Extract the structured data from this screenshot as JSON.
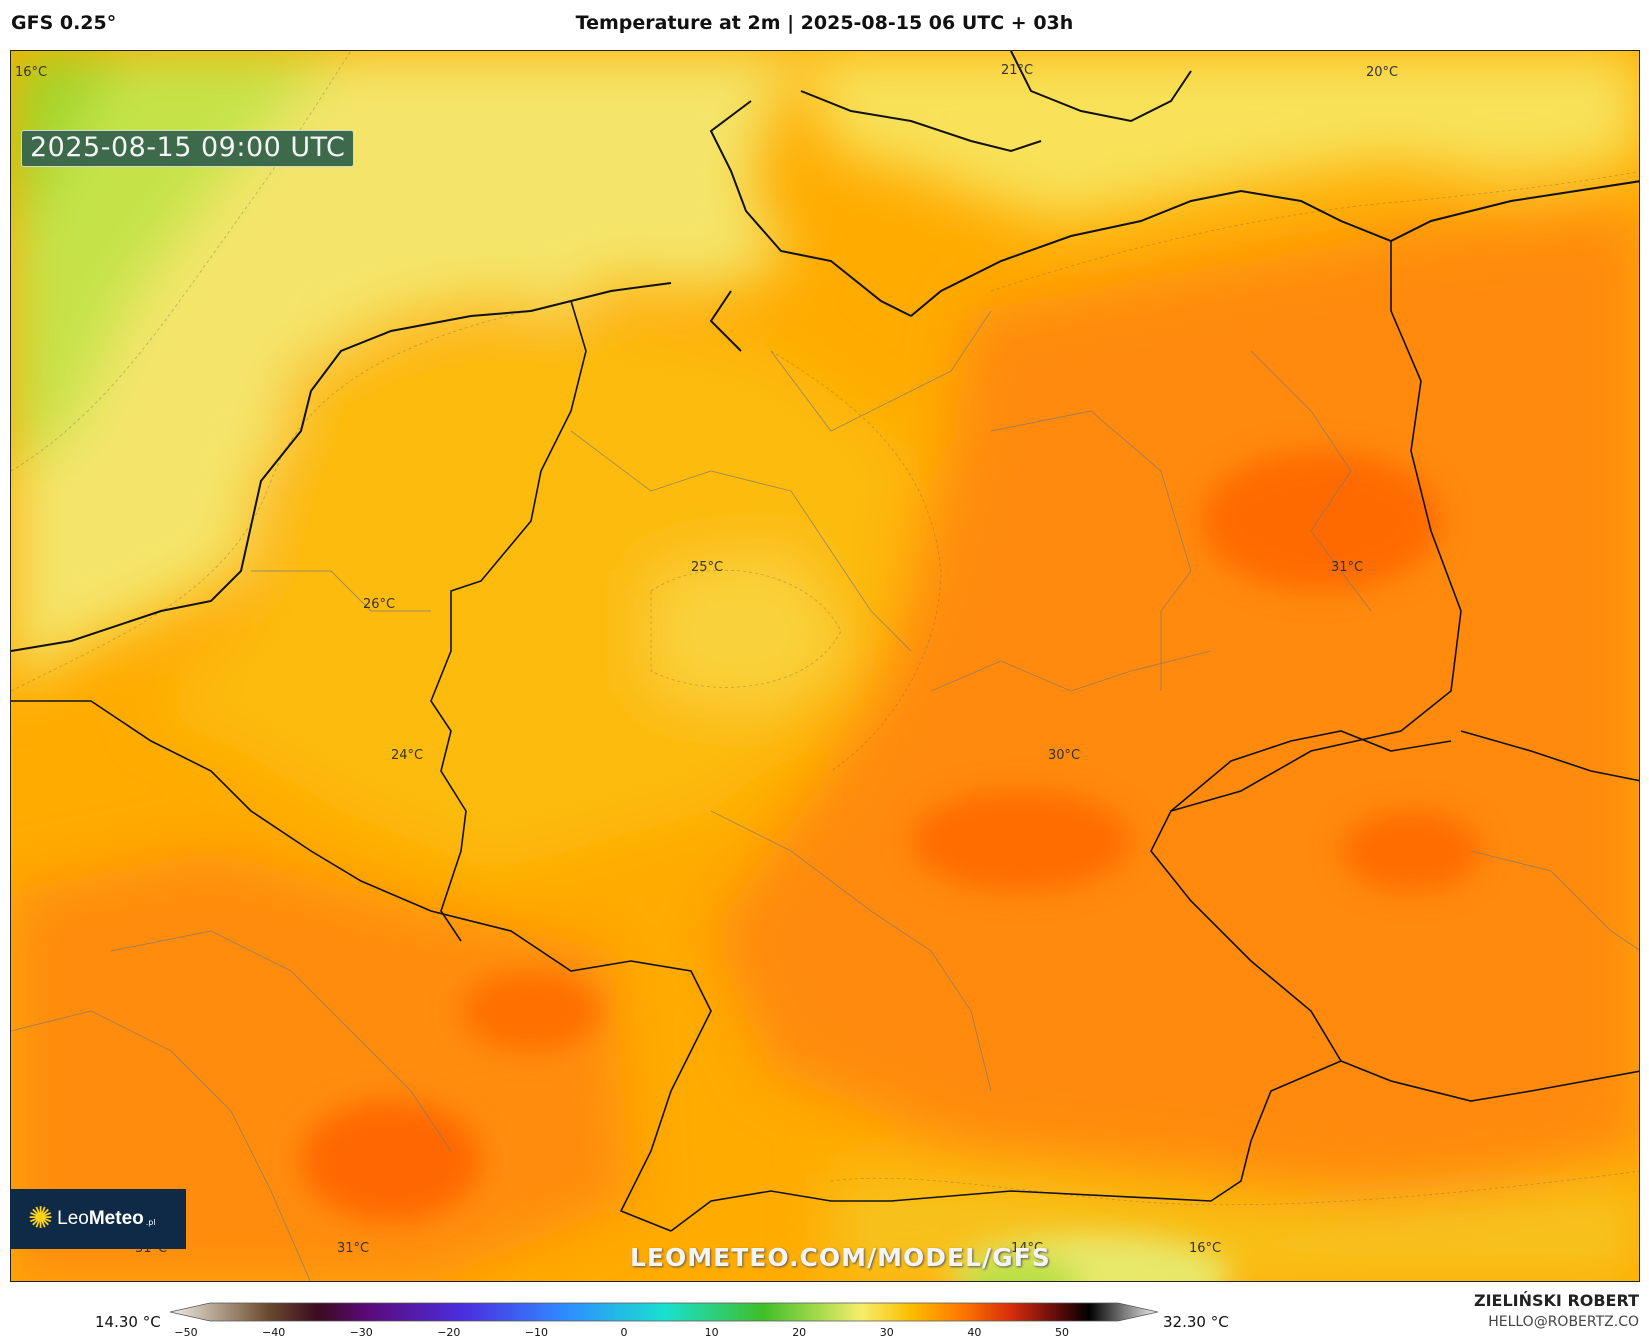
{
  "header": {
    "model": "GFS 0.25°",
    "title": "Temperature at 2m | 2025-08-15 06 UTC + 03h"
  },
  "map": {
    "timestamp": "2025-08-15 09:00 UTC",
    "labels": [
      {
        "id": "l16a",
        "text": "16°C"
      },
      {
        "id": "l21",
        "text": "21°C"
      },
      {
        "id": "l20",
        "text": "20°C"
      },
      {
        "id": "l25",
        "text": "25°C"
      },
      {
        "id": "l26",
        "text": "26°C"
      },
      {
        "id": "l31a",
        "text": "31°C"
      },
      {
        "id": "l24",
        "text": "24°C"
      },
      {
        "id": "l30",
        "text": "30°C"
      },
      {
        "id": "l31b",
        "text": "31°C"
      },
      {
        "id": "l31c",
        "text": "31°C"
      },
      {
        "id": "l14",
        "text": "14°C"
      },
      {
        "id": "l16b",
        "text": "16°C"
      }
    ],
    "watermark": "LEOMETEO.COM/MODEL/GFS",
    "logo": {
      "part1": "Leo",
      "part2": "Meteo",
      "part3": ".pl"
    }
  },
  "colorbar": {
    "min_label": "14.30 °C",
    "max_label": "32.30 °C",
    "ticks": [
      "−50",
      "−40",
      "−30",
      "−20",
      "−10",
      "0",
      "10",
      "20",
      "30",
      "40",
      "50"
    ],
    "stops": [
      {
        "value": -50,
        "color": "#f2ece4"
      },
      {
        "value": -40,
        "color": "#6a4a2e"
      },
      {
        "value": -35,
        "color": "#3c0a1e"
      },
      {
        "value": -30,
        "color": "#5a0a7a"
      },
      {
        "value": -20,
        "color": "#4a30e0"
      },
      {
        "value": -10,
        "color": "#2f8cff"
      },
      {
        "value": 0,
        "color": "#19e0d0"
      },
      {
        "value": 10,
        "color": "#3fbf28"
      },
      {
        "value": 20,
        "color": "#f6ee6a"
      },
      {
        "value": 25,
        "color": "#fbbd00"
      },
      {
        "value": 30,
        "color": "#ff7a00"
      },
      {
        "value": 35,
        "color": "#d8300a"
      },
      {
        "value": 40,
        "color": "#5a0a0a"
      },
      {
        "value": 43,
        "color": "#000000"
      },
      {
        "value": 50,
        "color": "#f0f0f0"
      }
    ]
  },
  "credits": {
    "author": "ZIELIŃSKI ROBERT",
    "email": "HELLO@ROBERTZ.CO"
  }
}
